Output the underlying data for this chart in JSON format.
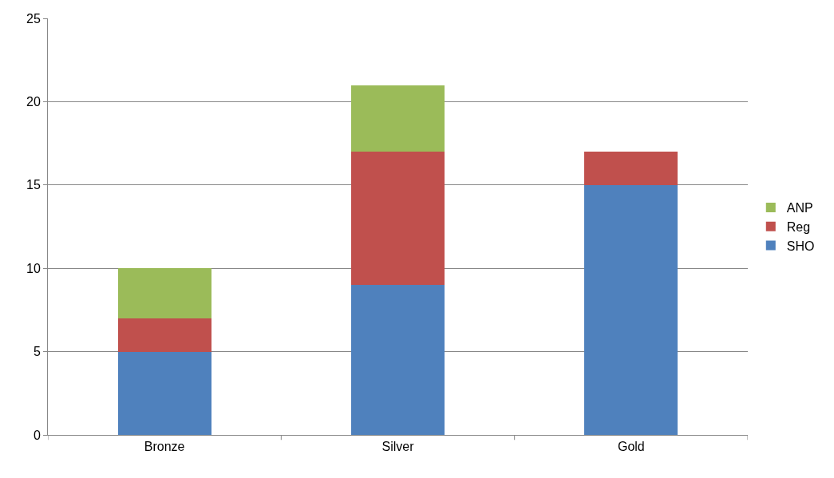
{
  "chart_data": {
    "type": "bar",
    "stacked": true,
    "categories": [
      "Bronze",
      "Silver",
      "Gold"
    ],
    "series": [
      {
        "name": "SHO",
        "color": "#4f81bd",
        "values": [
          5,
          9,
          15
        ]
      },
      {
        "name": "Reg",
        "color": "#c0504d",
        "values": [
          2,
          8,
          2
        ]
      },
      {
        "name": "ANP",
        "color": "#9bbb59",
        "values": [
          3,
          4,
          0
        ]
      }
    ],
    "ylim": [
      0,
      25
    ],
    "yticks": [
      0,
      5,
      10,
      15,
      20,
      25
    ],
    "grid": "y",
    "legend": "right"
  }
}
